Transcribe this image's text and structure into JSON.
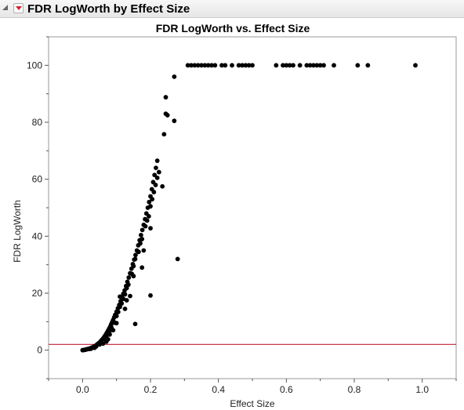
{
  "report": {
    "title": "FDR LogWorth by Effect Size",
    "disclosure_icon": "triangle-down-icon",
    "menu_icon": "red-triangle-menu-icon"
  },
  "chart_data": {
    "type": "scatter",
    "title": "FDR LogWorth vs. Effect Size",
    "xlabel": "Effect Size",
    "ylabel": "FDR LogWorth",
    "xlim": [
      -0.1,
      1.1
    ],
    "ylim": [
      -10,
      110
    ],
    "xticks": [
      0.0,
      0.2,
      0.4,
      0.6,
      0.8,
      1.0
    ],
    "xtick_labels": [
      "0.0",
      "0.2",
      "0.4",
      "0.6",
      "0.8",
      "1.0"
    ],
    "yticks": [
      0,
      20,
      40,
      60,
      80,
      100
    ],
    "ytick_labels": [
      "0",
      "20",
      "40",
      "60",
      "80",
      "100"
    ],
    "grid": false,
    "reference_line": {
      "y": 2,
      "color": "#c8384c"
    },
    "marker_color": "#000000",
    "points": [
      [
        0.0,
        0.0
      ],
      [
        0.003,
        0.05
      ],
      [
        0.006,
        0.1
      ],
      [
        0.009,
        0.2
      ],
      [
        0.012,
        0.3
      ],
      [
        0.015,
        0.4
      ],
      [
        0.018,
        0.5
      ],
      [
        0.021,
        0.6
      ],
      [
        0.024,
        0.7
      ],
      [
        0.027,
        0.85
      ],
      [
        0.03,
        1.0
      ],
      [
        0.033,
        1.2
      ],
      [
        0.036,
        1.4
      ],
      [
        0.039,
        1.6
      ],
      [
        0.042,
        1.9
      ],
      [
        0.045,
        2.2
      ],
      [
        0.048,
        2.5
      ],
      [
        0.051,
        2.8
      ],
      [
        0.054,
        3.2
      ],
      [
        0.057,
        3.6
      ],
      [
        0.06,
        4.0
      ],
      [
        0.063,
        4.5
      ],
      [
        0.066,
        5.0
      ],
      [
        0.069,
        5.6
      ],
      [
        0.072,
        6.2
      ],
      [
        0.075,
        6.8
      ],
      [
        0.078,
        7.5
      ],
      [
        0.081,
        8.2
      ],
      [
        0.084,
        9.0
      ],
      [
        0.087,
        9.8
      ],
      [
        0.09,
        10.6
      ],
      [
        0.093,
        11.5
      ],
      [
        0.096,
        12.4
      ],
      [
        0.1,
        13.5
      ],
      [
        0.104,
        14.7
      ],
      [
        0.108,
        15.9
      ],
      [
        0.112,
        17.2
      ],
      [
        0.116,
        18.5
      ],
      [
        0.12,
        19.8
      ],
      [
        0.124,
        21.0
      ],
      [
        0.128,
        22.5
      ],
      [
        0.132,
        24.0
      ],
      [
        0.136,
        25.5
      ],
      [
        0.14,
        27.0
      ],
      [
        0.144,
        28.6
      ],
      [
        0.148,
        30.2
      ],
      [
        0.152,
        31.8
      ],
      [
        0.156,
        33.4
      ],
      [
        0.16,
        35.0
      ],
      [
        0.164,
        36.8
      ],
      [
        0.168,
        38.6
      ],
      [
        0.172,
        40.4
      ],
      [
        0.176,
        42.2
      ],
      [
        0.18,
        44.0
      ],
      [
        0.184,
        46.0
      ],
      [
        0.188,
        48.0
      ],
      [
        0.192,
        50.0
      ],
      [
        0.196,
        52.0
      ],
      [
        0.2,
        54.0
      ],
      [
        0.204,
        56.5
      ],
      [
        0.208,
        59.0
      ],
      [
        0.212,
        61.5
      ],
      [
        0.216,
        64.0
      ],
      [
        0.22,
        66.5
      ],
      [
        0.01,
        0.2
      ],
      [
        0.02,
        0.4
      ],
      [
        0.025,
        0.5
      ],
      [
        0.035,
        0.8
      ],
      [
        0.04,
        1.3
      ],
      [
        0.05,
        2.0
      ],
      [
        0.055,
        2.6
      ],
      [
        0.065,
        3.9
      ],
      [
        0.07,
        4.7
      ],
      [
        0.075,
        3.8
      ],
      [
        0.08,
        6.8
      ],
      [
        0.085,
        7.9
      ],
      [
        0.095,
        9.6
      ],
      [
        0.1,
        12.0
      ],
      [
        0.105,
        13.4
      ],
      [
        0.11,
        15.2
      ],
      [
        0.115,
        16.4
      ],
      [
        0.12,
        18.0
      ],
      [
        0.125,
        19.6
      ],
      [
        0.13,
        21.8
      ],
      [
        0.135,
        23.0
      ],
      [
        0.145,
        26.8
      ],
      [
        0.15,
        29.5
      ],
      [
        0.155,
        32.0
      ],
      [
        0.165,
        34.5
      ],
      [
        0.17,
        37.5
      ],
      [
        0.175,
        39.0
      ],
      [
        0.185,
        43.5
      ],
      [
        0.19,
        45.5
      ],
      [
        0.195,
        47.0
      ],
      [
        0.2,
        50.5
      ],
      [
        0.205,
        53.0
      ],
      [
        0.21,
        55.5
      ],
      [
        0.215,
        58.0
      ],
      [
        0.22,
        60.5
      ],
      [
        0.11,
        18.8
      ],
      [
        0.155,
        9.2
      ],
      [
        0.2,
        19.2
      ],
      [
        0.2,
        42.8
      ],
      [
        0.225,
        62.5
      ],
      [
        0.235,
        57.5
      ],
      [
        0.24,
        75.8
      ],
      [
        0.245,
        83.0
      ],
      [
        0.245,
        88.8
      ],
      [
        0.25,
        82.5
      ],
      [
        0.27,
        96.0
      ],
      [
        0.27,
        80.5
      ],
      [
        0.28,
        32.0
      ],
      [
        0.18,
        35.0
      ],
      [
        0.175,
        29.0
      ],
      [
        0.15,
        26.0
      ],
      [
        0.14,
        19.0
      ],
      [
        0.13,
        17.5
      ],
      [
        0.125,
        14.5
      ],
      [
        0.1,
        9.5
      ],
      [
        0.09,
        7.0
      ],
      [
        0.08,
        5.5
      ],
      [
        0.07,
        3.0
      ],
      [
        0.06,
        2.3
      ],
      [
        0.31,
        100
      ],
      [
        0.32,
        100
      ],
      [
        0.33,
        100
      ],
      [
        0.34,
        100
      ],
      [
        0.35,
        100
      ],
      [
        0.36,
        100
      ],
      [
        0.37,
        100
      ],
      [
        0.38,
        100
      ],
      [
        0.39,
        100
      ],
      [
        0.41,
        100
      ],
      [
        0.42,
        100
      ],
      [
        0.44,
        100
      ],
      [
        0.46,
        100
      ],
      [
        0.47,
        100
      ],
      [
        0.48,
        100
      ],
      [
        0.49,
        100
      ],
      [
        0.5,
        100
      ],
      [
        0.57,
        100
      ],
      [
        0.59,
        100
      ],
      [
        0.6,
        100
      ],
      [
        0.61,
        100
      ],
      [
        0.62,
        100
      ],
      [
        0.64,
        100
      ],
      [
        0.66,
        100
      ],
      [
        0.67,
        100
      ],
      [
        0.68,
        100
      ],
      [
        0.69,
        100
      ],
      [
        0.7,
        100
      ],
      [
        0.71,
        100
      ],
      [
        0.74,
        100
      ],
      [
        0.81,
        100
      ],
      [
        0.84,
        100
      ],
      [
        0.98,
        100
      ]
    ]
  }
}
